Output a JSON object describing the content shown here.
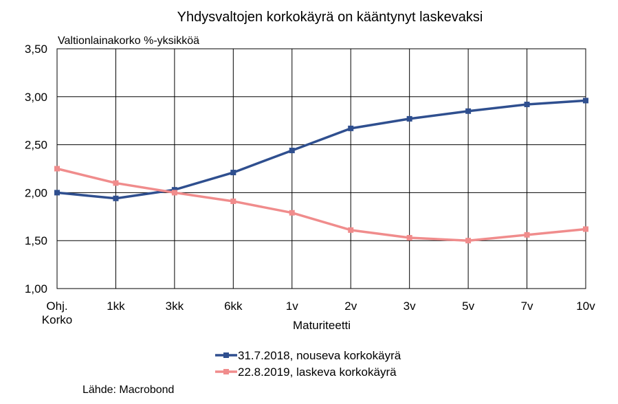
{
  "chart_data": {
    "type": "line",
    "title": "Yhdysvaltojen korkokäyrä on kääntynyt laskevaksi",
    "unit_label": "Valtionlainakorko  %-yksikköä",
    "xlabel": "Maturiteetti",
    "ylabel": "",
    "categories": [
      [
        "Ohj.",
        "Korko"
      ],
      [
        "1kk"
      ],
      [
        "3kk"
      ],
      [
        "6kk"
      ],
      [
        "1v"
      ],
      [
        "2v"
      ],
      [
        "3v"
      ],
      [
        "5v"
      ],
      [
        "7v"
      ],
      [
        "10v"
      ]
    ],
    "ylim": [
      1.0,
      3.5
    ],
    "ytick_values": [
      1.0,
      1.5,
      2.0,
      2.5,
      3.0,
      3.5
    ],
    "ytick_labels": [
      "1,00",
      "1,50",
      "2,00",
      "2,50",
      "3,00",
      "3,50"
    ],
    "grid": true,
    "legend_position": "bottom-center",
    "series": [
      {
        "name": "31.7.2018, nouseva korkokäyrä",
        "color": "#2f4f8f",
        "values": [
          2.0,
          1.94,
          2.03,
          2.21,
          2.44,
          2.67,
          2.77,
          2.85,
          2.92,
          2.96
        ]
      },
      {
        "name": "22.8.2019, laskeva korkokäyrä",
        "color": "#f08c8c",
        "values": [
          2.25,
          2.1,
          2.0,
          1.91,
          1.79,
          1.61,
          1.53,
          1.5,
          1.56,
          1.62
        ]
      }
    ]
  },
  "source": "Lähde: Macrobond"
}
